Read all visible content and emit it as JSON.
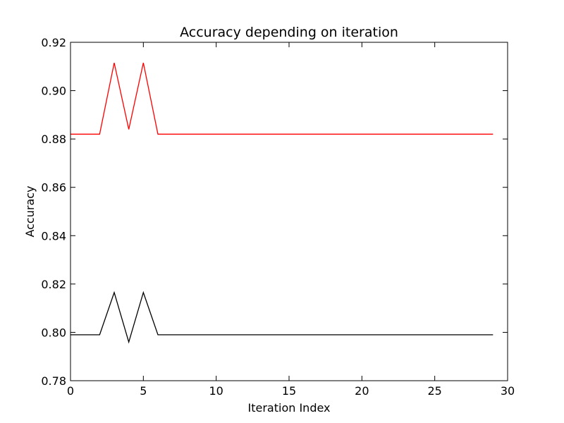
{
  "chart_data": {
    "type": "line",
    "title": "Accuracy depending on iteration",
    "xlabel": "Iteration Index",
    "ylabel": "Accuracy",
    "xlim": [
      0,
      30
    ],
    "ylim": [
      0.78,
      0.92
    ],
    "xticks": [
      0,
      5,
      10,
      15,
      20,
      25,
      30
    ],
    "xtick_labels": [
      "0",
      "5",
      "10",
      "15",
      "20",
      "25",
      "30"
    ],
    "yticks": [
      0.78,
      0.8,
      0.82,
      0.84,
      0.86,
      0.88,
      0.9,
      0.92
    ],
    "ytick_labels": [
      "0.78",
      "0.80",
      "0.82",
      "0.84",
      "0.86",
      "0.88",
      "0.90",
      "0.92"
    ],
    "grid": false,
    "x": [
      0,
      1,
      2,
      3,
      4,
      5,
      6,
      7,
      8,
      9,
      10,
      11,
      12,
      13,
      14,
      15,
      16,
      17,
      18,
      19,
      20,
      21,
      22,
      23,
      24,
      25,
      26,
      27,
      28,
      29
    ],
    "series": [
      {
        "color": "#ff0000",
        "values": [
          0.882,
          0.882,
          0.882,
          0.9115,
          0.884,
          0.9115,
          0.882,
          0.882,
          0.882,
          0.882,
          0.882,
          0.882,
          0.882,
          0.882,
          0.882,
          0.882,
          0.882,
          0.882,
          0.882,
          0.882,
          0.882,
          0.882,
          0.882,
          0.882,
          0.882,
          0.882,
          0.882,
          0.882,
          0.882,
          0.882
        ]
      },
      {
        "color": "#000000",
        "values": [
          0.799,
          0.799,
          0.799,
          0.8165,
          0.796,
          0.8165,
          0.799,
          0.799,
          0.799,
          0.799,
          0.799,
          0.799,
          0.799,
          0.799,
          0.799,
          0.799,
          0.799,
          0.799,
          0.799,
          0.799,
          0.799,
          0.799,
          0.799,
          0.799,
          0.799,
          0.799,
          0.799,
          0.799,
          0.799,
          0.799
        ]
      }
    ]
  }
}
